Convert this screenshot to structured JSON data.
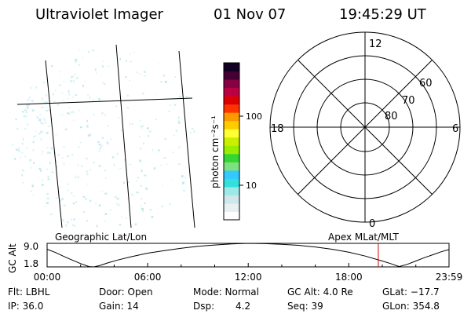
{
  "header": {
    "instrument": "Ultraviolet Imager",
    "date": "01 Nov 07",
    "time": "19:45:29 UT"
  },
  "colorbar": {
    "unit_label": "photon cm⁻²s⁻¹",
    "ticks": [
      "100",
      "10"
    ],
    "colors": [
      "#ffffff",
      "#e8f0f2",
      "#cfe6ea",
      "#9ee8e8",
      "#33e0dd",
      "#33c8ff",
      "#7fe07f",
      "#33d633",
      "#99ee00",
      "#ccee00",
      "#ffff33",
      "#ffcc00",
      "#ff9900",
      "#ff3300",
      "#dd0000",
      "#bb0044",
      "#880044",
      "#440033",
      "#110022"
    ]
  },
  "geo_panel": {
    "label": "Geographic Lat/Lon",
    "aurora_color": "#b8e6ea"
  },
  "polar_plot": {
    "label": "Apex MLat/MLT",
    "mlt_labels": {
      "top": "12",
      "bottom": "0",
      "left": "18",
      "right": "6"
    },
    "lat_labels": [
      "80",
      "70",
      "60"
    ]
  },
  "gc_alt": {
    "axis_title": "GC Alt",
    "y_max": "9.0",
    "y_min": "1.8",
    "time_ticks": [
      "00:00",
      "06:00",
      "12:00",
      "18:00",
      "23:59"
    ],
    "marker_color": "#dd0000"
  },
  "chart_data": {
    "type": "line",
    "title": "",
    "xlabel": "",
    "ylabel": "GC Alt",
    "x_unit": "hours UT",
    "xlim": [
      0,
      23.98
    ],
    "ylim": [
      1.8,
      9.0
    ],
    "x": [
      0,
      0.5,
      1.0,
      1.5,
      2.0,
      2.5,
      2.8,
      3.2,
      3.6,
      4.2,
      5.0,
      6.0,
      7.0,
      8.0,
      9.0,
      10.0,
      11.0,
      12.0,
      13.0,
      14.0,
      15.0,
      16.0,
      17.0,
      18.0,
      19.0,
      20.0,
      20.5,
      21.0,
      21.5,
      22.0,
      22.5,
      23.0,
      23.5,
      23.98
    ],
    "y": [
      7.2,
      6.2,
      5.0,
      3.9,
      2.8,
      1.9,
      1.8,
      2.3,
      3.0,
      3.9,
      4.9,
      6.0,
      6.8,
      7.5,
      8.1,
      8.5,
      8.8,
      9.0,
      8.9,
      8.7,
      8.4,
      7.9,
      7.2,
      6.3,
      5.1,
      3.6,
      2.8,
      1.9,
      2.6,
      3.6,
      4.6,
      5.5,
      6.4,
      7.1
    ],
    "current_time_marker": 19.76,
    "grid": false
  },
  "footer": {
    "flt": "Flt: LBHL",
    "ip": "IP: 36.0",
    "door": "Door: Open",
    "gain": "Gain: 14",
    "mode": "Mode: Normal",
    "dsp_label": "Dsp:",
    "dsp_value": "4.2",
    "gcalt": "GC Alt: 4.0 Re",
    "seq": "Seq: 39",
    "glat": "GLat: −17.7",
    "glon": "GLon: 354.8"
  }
}
